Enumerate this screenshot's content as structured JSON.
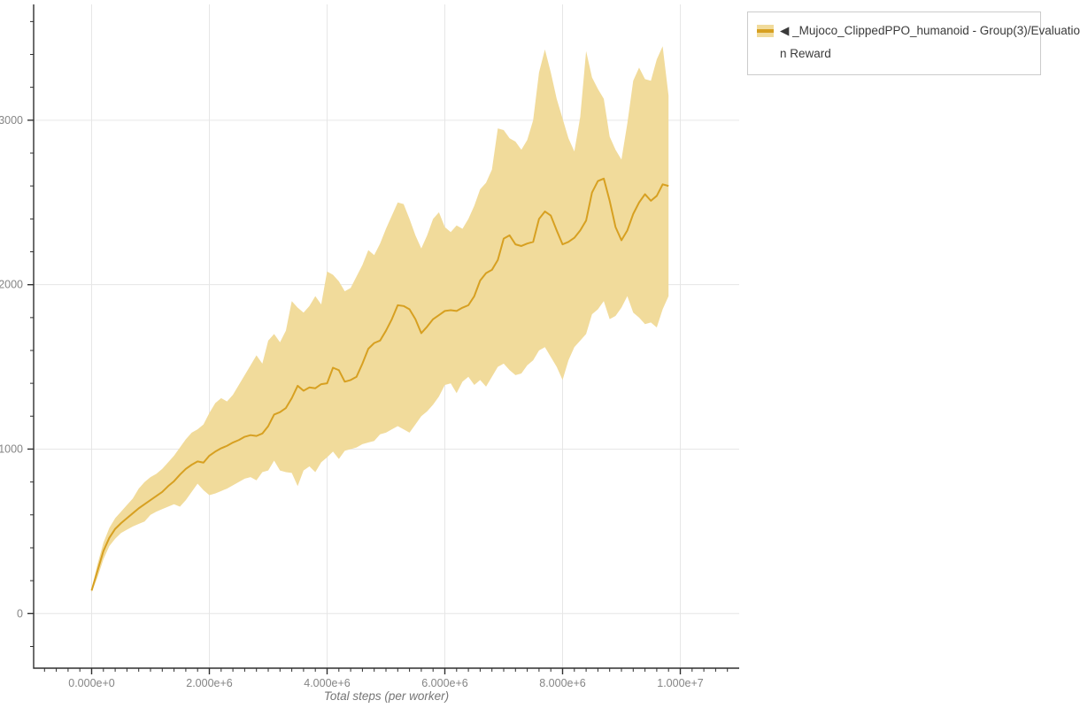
{
  "legend": {
    "items": [
      {
        "series": "Mujoco_ClippedPPO_humanoid - Group(3)/Evaluation Reward",
        "swatch_band_color": "#f1db9b",
        "swatch_line_color": "#d7a021",
        "lines": [
          "◀ _Mujoco_ClippedPPO_humanoid - Group(3)/Evaluatio",
          "n Reward"
        ]
      }
    ]
  },
  "chart_data": {
    "type": "line",
    "title": "",
    "xlabel": "Total steps (per worker)",
    "ylabel": "",
    "xlim": [
      -985000,
      11000000
    ],
    "ylim": [
      -332,
      3704
    ],
    "grid": true,
    "grid_color": "#e6e6e6",
    "axis_color": "#2f2f2f",
    "tick_label_color": "#858585",
    "x_ticks": [
      {
        "v": 0,
        "label": "0.000e+0"
      },
      {
        "v": 2000000,
        "label": "2.000e+6"
      },
      {
        "v": 4000000,
        "label": "4.000e+6"
      },
      {
        "v": 6000000,
        "label": "6.000e+6"
      },
      {
        "v": 8000000,
        "label": "8.000e+6"
      },
      {
        "v": 10000000,
        "label": "1.000e+7"
      }
    ],
    "y_ticks": [
      {
        "v": 0,
        "label": "0"
      },
      {
        "v": 1000,
        "label": "1000"
      },
      {
        "v": 2000,
        "label": "2000"
      },
      {
        "v": 3000,
        "label": "3000"
      }
    ],
    "x_minor_step": 200000,
    "x_minor_range": [
      -800000,
      10800000
    ],
    "y_minor_step": 200,
    "y_minor_range": [
      -200,
      3600
    ],
    "series": [
      {
        "name": "_Mujoco_ClippedPPO_humanoid - Group(3)/Evaluation Reward",
        "line_color": "#d7a021",
        "band_color": "#f1db9b",
        "x_start": 0,
        "x_step": 100000,
        "mean": [
          140,
          260,
          380,
          460,
          515,
          550,
          580,
          610,
          640,
          665,
          690,
          715,
          740,
          775,
          805,
          845,
          880,
          905,
          925,
          918,
          960,
          985,
          1005,
          1020,
          1040,
          1055,
          1075,
          1085,
          1080,
          1095,
          1140,
          1210,
          1225,
          1250,
          1310,
          1385,
          1355,
          1375,
          1370,
          1395,
          1400,
          1495,
          1480,
          1410,
          1420,
          1440,
          1520,
          1610,
          1645,
          1660,
          1720,
          1790,
          1875,
          1870,
          1850,
          1790,
          1705,
          1745,
          1790,
          1815,
          1840,
          1845,
          1840,
          1860,
          1875,
          1930,
          2025,
          2070,
          2090,
          2150,
          2280,
          2300,
          2245,
          2235,
          2250,
          2260,
          2400,
          2445,
          2420,
          2330,
          2245,
          2260,
          2285,
          2330,
          2390,
          2560,
          2630,
          2645,
          2510,
          2350,
          2270,
          2330,
          2430,
          2500,
          2550,
          2510,
          2540,
          2610,
          2600
        ],
        "hi": [
          150,
          300,
          430,
          520,
          580,
          620,
          660,
          700,
          760,
          800,
          830,
          850,
          880,
          920,
          960,
          1010,
          1060,
          1100,
          1120,
          1150,
          1220,
          1280,
          1310,
          1290,
          1330,
          1390,
          1450,
          1510,
          1570,
          1520,
          1660,
          1700,
          1650,
          1720,
          1900,
          1860,
          1830,
          1870,
          1930,
          1880,
          2080,
          2060,
          2020,
          1960,
          1980,
          2050,
          2120,
          2210,
          2180,
          2250,
          2340,
          2420,
          2500,
          2490,
          2400,
          2300,
          2220,
          2300,
          2400,
          2440,
          2350,
          2320,
          2360,
          2340,
          2400,
          2480,
          2580,
          2620,
          2700,
          2950,
          2940,
          2890,
          2870,
          2820,
          2880,
          3000,
          3290,
          3430,
          3290,
          3130,
          3010,
          2890,
          2810,
          3020,
          3420,
          3260,
          3190,
          3130,
          2900,
          2820,
          2760,
          2980,
          3240,
          3320,
          3250,
          3240,
          3370,
          3450,
          3150
        ],
        "lo": [
          130,
          220,
          330,
          410,
          455,
          490,
          510,
          530,
          545,
          560,
          600,
          620,
          635,
          650,
          665,
          650,
          690,
          740,
          790,
          750,
          720,
          730,
          745,
          760,
          780,
          800,
          820,
          830,
          810,
          860,
          870,
          930,
          870,
          860,
          855,
          775,
          870,
          895,
          860,
          920,
          950,
          985,
          940,
          990,
          1000,
          1010,
          1030,
          1040,
          1050,
          1090,
          1100,
          1120,
          1140,
          1120,
          1100,
          1150,
          1200,
          1230,
          1270,
          1320,
          1390,
          1400,
          1340,
          1410,
          1440,
          1390,
          1420,
          1380,
          1440,
          1500,
          1520,
          1480,
          1450,
          1460,
          1510,
          1540,
          1600,
          1620,
          1560,
          1500,
          1420,
          1540,
          1620,
          1660,
          1700,
          1820,
          1850,
          1900,
          1790,
          1810,
          1860,
          1930,
          1830,
          1800,
          1760,
          1770,
          1740,
          1850,
          1930
        ]
      }
    ]
  }
}
